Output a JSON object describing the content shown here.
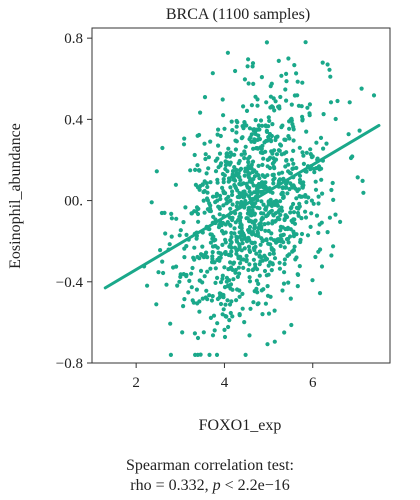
{
  "chart_data": {
    "type": "scatter",
    "title": "BRCA (1100 samples)",
    "xlabel": "FOXO1_exp",
    "ylabel": "Eosinophil_abundance",
    "xlim": [
      1.0,
      7.75
    ],
    "ylim": [
      -0.8,
      0.85
    ],
    "x_ticks": [
      2,
      4,
      6
    ],
    "y_ticks": [
      -0.8,
      -0.4,
      0.0,
      0.4,
      0.8
    ],
    "x_tick_labels": [
      "2",
      "4",
      "6"
    ],
    "y_tick_labels": [
      "−0.8",
      "−0.4",
      "00.",
      "0.4",
      "0.8"
    ],
    "point_count": 1100,
    "point_color": "#1aa88a",
    "line_color": "#1aa88a",
    "regression_line": {
      "x": [
        1.3,
        7.5
      ],
      "y": [
        -0.43,
        0.37
      ]
    },
    "grid": false,
    "legend": "none",
    "caption_line1": "Spearman correlation test:",
    "caption_rho": "rho = 0.332, ",
    "caption_p_symbol": "p",
    "caption_p_rest": " < 2.2e−16"
  }
}
